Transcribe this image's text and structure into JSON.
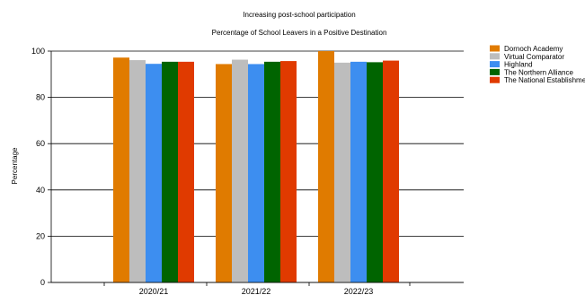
{
  "chart_data": {
    "type": "bar",
    "title": "Increasing post-school participation",
    "subtitle": "Percentage of School Leavers in a Positive Destination",
    "xlabel": "",
    "ylabel": "Percentage",
    "ylim": [
      0,
      100
    ],
    "yticks": [
      "0",
      "20",
      "40",
      "60",
      "80",
      "100"
    ],
    "grid": true,
    "legend_position": "top-right",
    "categories": [
      "2020/21",
      "2021/22",
      "2022/23"
    ],
    "series": [
      {
        "name": "Dornoch Academy",
        "color": "#E07B00",
        "values": [
          97.2,
          94.4,
          100
        ]
      },
      {
        "name": "Virtual Comparator",
        "color": "#BDBDBD",
        "values": [
          96.1,
          96.3,
          95.0
        ]
      },
      {
        "name": "Highland",
        "color": "#3D8EF0",
        "values": [
          94.5,
          94.4,
          95.4
        ]
      },
      {
        "name": "The Northern Alliance",
        "color": "#006400",
        "values": [
          95.4,
          95.4,
          95.2
        ]
      },
      {
        "name": "The National Establishment",
        "color": "#E03A00",
        "values": [
          95.4,
          95.7,
          95.9
        ]
      }
    ]
  }
}
